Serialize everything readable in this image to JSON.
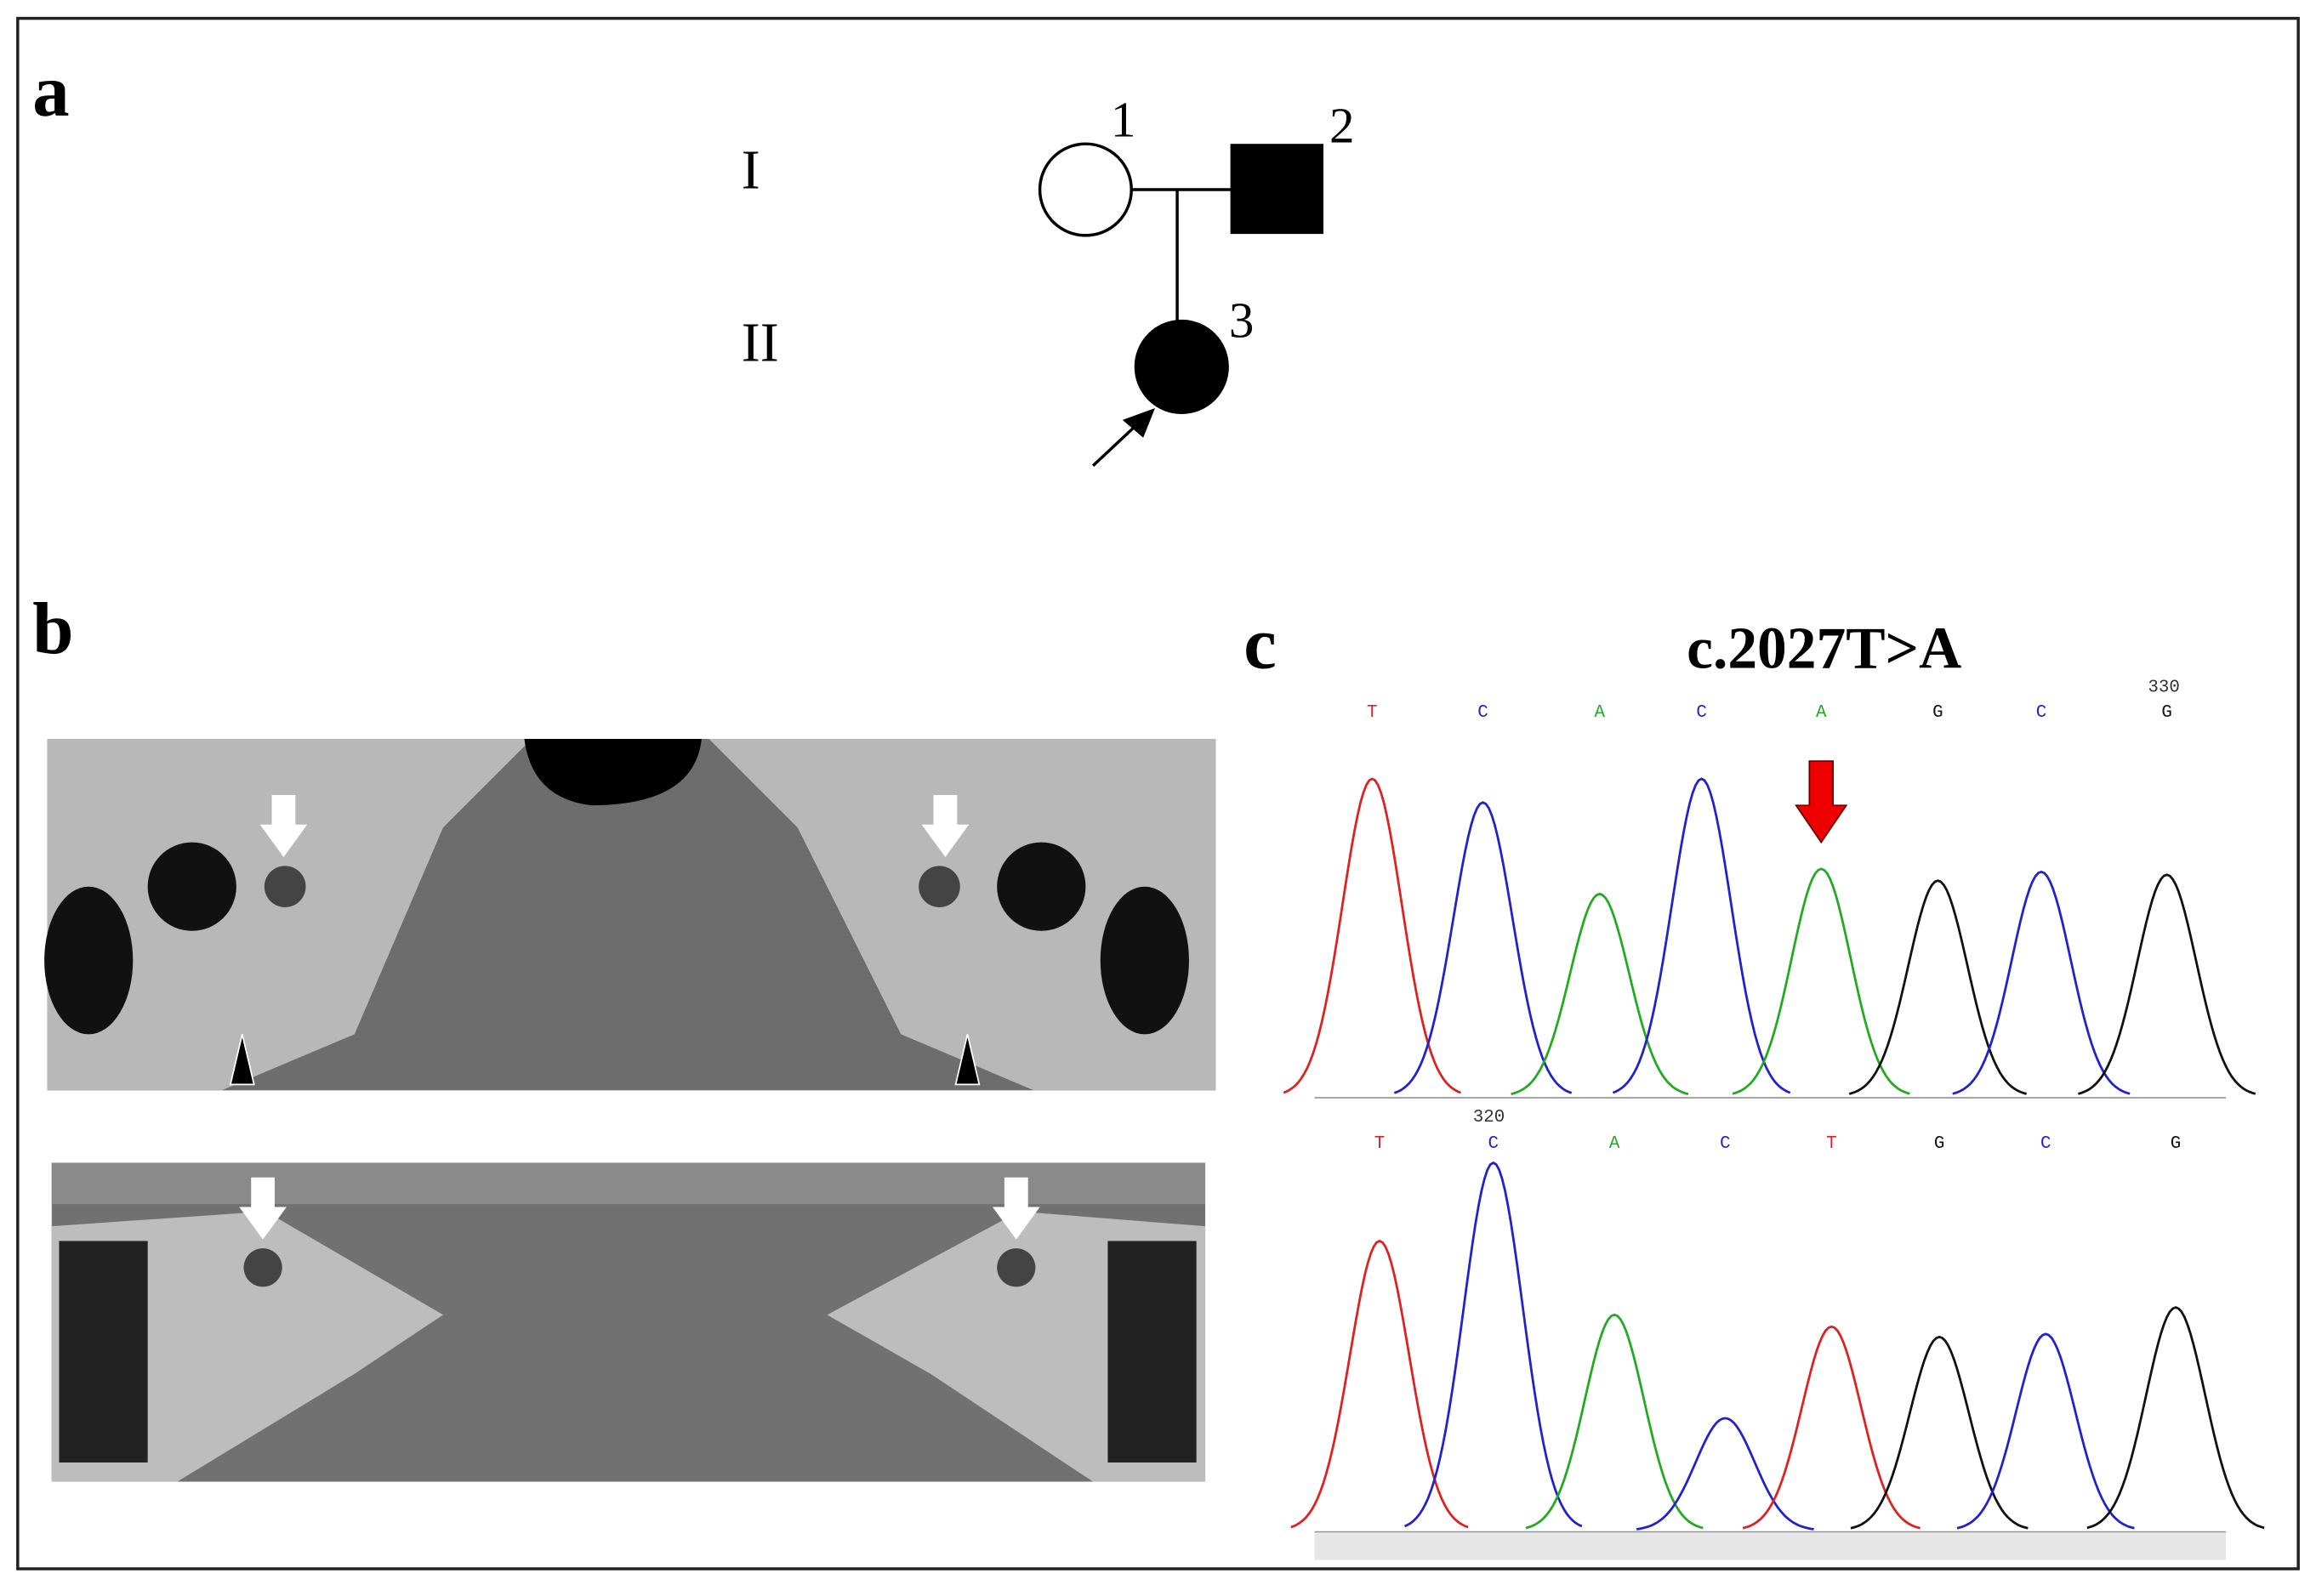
{
  "panels": {
    "a": {
      "label": "a",
      "generations": [
        "I",
        "II"
      ],
      "individuals": [
        "1",
        "2",
        "3"
      ]
    },
    "b": {
      "label": "b"
    },
    "c": {
      "label": "c",
      "title": "c.2027T>A",
      "top": {
        "position": "330",
        "bases": [
          "T",
          "C",
          "A",
          "C",
          "A",
          "G",
          "C",
          "G"
        ]
      },
      "bottom": {
        "position": "320",
        "bases": [
          "T",
          "C",
          "A",
          "C",
          "T",
          "G",
          "C",
          "G"
        ]
      }
    }
  }
}
